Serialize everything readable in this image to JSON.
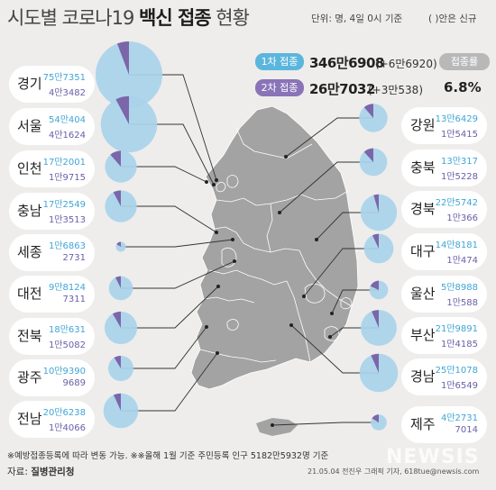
{
  "title": {
    "prefix": "시도별 코로나19 ",
    "bold": "백신 접종",
    "suffix": " 현황",
    "unit": "단위: 명, 4일 0시 기준",
    "legend": "( )안은 신규"
  },
  "summary": {
    "first_dose": {
      "tag": "1차 접종",
      "total": "346만6908",
      "new": "(+6만6920)"
    },
    "second_dose": {
      "tag": "2차 접종",
      "total": "26만7032",
      "new": "(+3만538)"
    },
    "rate": {
      "tag": "접종률",
      "value": "6.8%",
      "fraction": 0.068
    }
  },
  "colors": {
    "first_dose": "#a9d3ea",
    "second_dose": "#7b66aa",
    "first_tag": "#5bb6dd",
    "second_tag": "#8a74b8",
    "map_fill": "#a3a3a3"
  },
  "regions": [
    {
      "name": "경기",
      "first": "75만7351",
      "second": "4만3482",
      "first_n": 757351,
      "second_n": 43482
    },
    {
      "name": "서울",
      "first": "54만404",
      "second": "4만1624",
      "first_n": 540404,
      "second_n": 41624
    },
    {
      "name": "인천",
      "first": "17만2001",
      "second": "1만9715",
      "first_n": 172001,
      "second_n": 19715
    },
    {
      "name": "충남",
      "first": "17만2549",
      "second": "1만3513",
      "first_n": 172549,
      "second_n": 13513
    },
    {
      "name": "세종",
      "first": "1만6863",
      "second": "2731",
      "first_n": 16863,
      "second_n": 2731
    },
    {
      "name": "대전",
      "first": "9만8124",
      "second": "7311",
      "first_n": 98124,
      "second_n": 7311
    },
    {
      "name": "전북",
      "first": "18만631",
      "second": "1만5082",
      "first_n": 180631,
      "second_n": 15082
    },
    {
      "name": "광주",
      "first": "10만9390",
      "second": "9689",
      "first_n": 109390,
      "second_n": 9689
    },
    {
      "name": "전남",
      "first": "20만6238",
      "second": "1만4066",
      "first_n": 206238,
      "second_n": 14066
    },
    {
      "name": "강원",
      "first": "13만6429",
      "second": "1만5415",
      "first_n": 136429,
      "second_n": 15415
    },
    {
      "name": "충북",
      "first": "13만317",
      "second": "1만5228",
      "first_n": 130317,
      "second_n": 15228
    },
    {
      "name": "경북",
      "first": "22만5742",
      "second": "1만366",
      "first_n": 225742,
      "second_n": 10366
    },
    {
      "name": "대구",
      "first": "14만8181",
      "second": "1만474",
      "first_n": 148181,
      "second_n": 10474
    },
    {
      "name": "울산",
      "first": "5만8988",
      "second": "1만588",
      "first_n": 58988,
      "second_n": 10588
    },
    {
      "name": "부산",
      "first": "21만9891",
      "second": "1만4185",
      "first_n": 219891,
      "second_n": 14185
    },
    {
      "name": "경남",
      "first": "25만1078",
      "second": "1만6549",
      "first_n": 251078,
      "second_n": 16549
    },
    {
      "name": "제주",
      "first": "4만2731",
      "second": "7014",
      "first_n": 42731,
      "second_n": 7014
    }
  ],
  "footnote": "※예방접종등록에 따라 변동 가능. ※※올해 1월 기준 주민등록 인구 5182만5932명 기준",
  "source_label": "자료: ",
  "source_name": "질병관리청",
  "credit": "21.05.04 전진우 그래픽 기자, 618tue@newsis.com",
  "watermark": "NEWSIS"
}
